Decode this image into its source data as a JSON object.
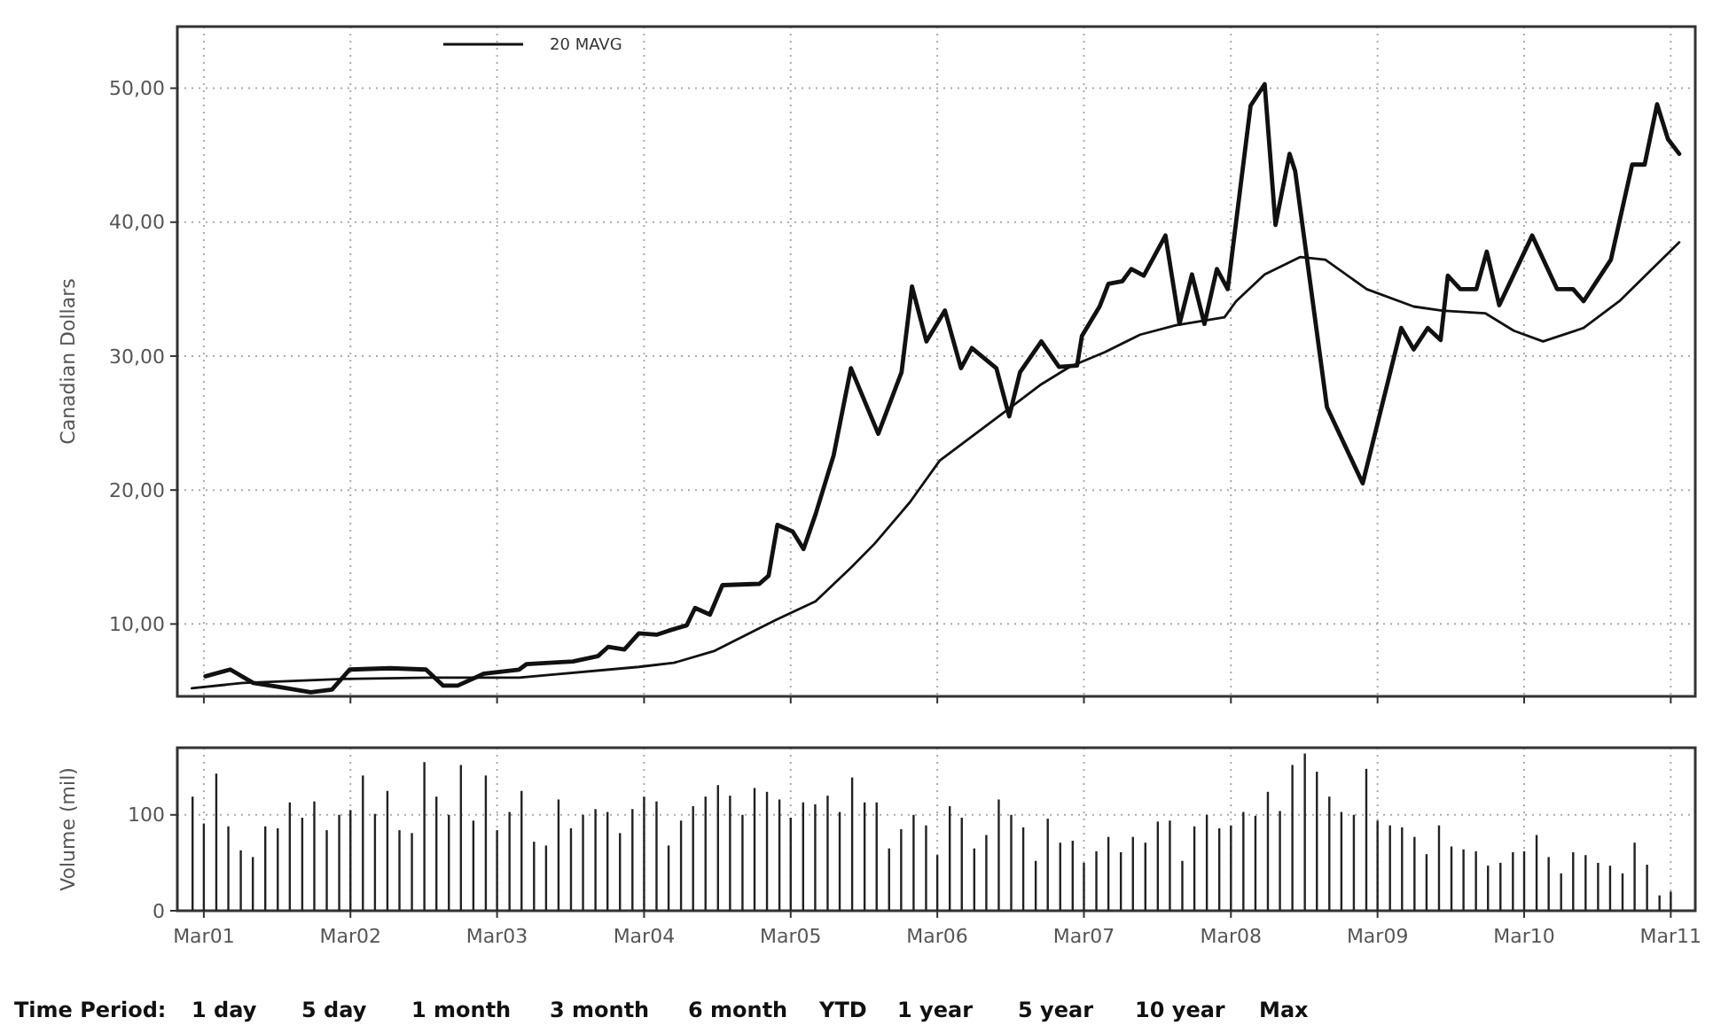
{
  "chart_data": [
    {
      "type": "line",
      "ylabel": "Canadian Dollars",
      "xlim": [
        "2000-12-25",
        "2011-05-01"
      ],
      "ylim": [
        4.6,
        54.6
      ],
      "xticks": [
        {
          "value": "2001-03-01",
          "label": null
        },
        {
          "value": "2002-03-01",
          "label": null
        },
        {
          "value": "2003-03-01",
          "label": null
        },
        {
          "value": "2004-03-01",
          "label": null
        },
        {
          "value": "2005-03-01",
          "label": null
        },
        {
          "value": "2006-03-01",
          "label": null
        },
        {
          "value": "2007-03-01",
          "label": null
        },
        {
          "value": "2008-03-01",
          "label": null
        },
        {
          "value": "2009-03-01",
          "label": null
        },
        {
          "value": "2010-03-01",
          "label": null
        },
        {
          "value": "2011-03-01",
          "label": null
        }
      ],
      "yticks": [
        {
          "value": 10,
          "label": "10,00"
        },
        {
          "value": 20,
          "label": "20,00"
        },
        {
          "value": 30,
          "label": "30,00"
        },
        {
          "value": 40,
          "label": "40,00"
        },
        {
          "value": 50,
          "label": "50,00"
        }
      ],
      "grid": true,
      "legend": "top left",
      "tick_labels": "y",
      "series": [
        {
          "color": "#111111",
          "x": [
            "2001-03-05",
            "2001-05-06",
            "2001-07-02",
            "2001-09-04",
            "2001-11-22",
            "2002-01-14",
            "2002-02-27",
            "2002-06-08",
            "2002-09-05",
            "2002-10-18",
            "2002-11-23",
            "2003-01-28",
            "2003-04-25",
            "2003-05-13",
            "2003-09-06",
            "2003-11-07",
            "2003-12-03",
            "2004-01-12",
            "2004-02-17",
            "2004-04-01",
            "2004-05-01",
            "2004-06-15",
            "2004-07-06",
            "2004-08-12",
            "2004-09-12",
            "2004-12-13",
            "2005-01-05",
            "2005-01-27",
            "2005-03-06",
            "2005-04-02",
            "2005-05-02",
            "2005-06-16",
            "2005-07-29",
            "2005-10-05",
            "2005-12-02",
            "2005-12-28",
            "2006-02-02",
            "2006-03-20",
            "2006-04-29",
            "2006-05-26",
            "2006-07-26",
            "2006-08-27",
            "2006-09-23",
            "2006-11-15",
            "2006-12-29",
            "2007-02-12",
            "2007-02-24",
            "2007-04-09",
            "2007-05-01",
            "2007-06-05",
            "2007-06-27",
            "2007-07-28",
            "2007-09-20",
            "2007-10-25",
            "2007-11-25",
            "2007-12-26",
            "2008-01-26",
            "2008-02-22",
            "2008-04-19",
            "2008-05-24",
            "2008-06-20",
            "2008-07-25",
            "2008-08-08",
            "2008-10-26",
            "2009-01-23",
            "2009-04-29",
            "2009-05-30",
            "2009-07-04",
            "2009-08-05",
            "2009-08-23",
            "2009-09-23",
            "2009-11-02",
            "2009-11-28",
            "2009-12-29",
            "2010-03-21",
            "2010-05-22",
            "2010-07-01",
            "2010-07-27",
            "2010-10-03",
            "2010-11-25",
            "2010-12-26",
            "2011-01-26",
            "2011-02-22",
            "2011-03-22"
          ],
          "values": [
            6.1,
            6.6,
            5.6,
            5.3,
            4.9,
            5.1,
            6.6,
            6.7,
            6.6,
            5.4,
            5.4,
            6.3,
            6.6,
            7.0,
            7.2,
            7.6,
            8.3,
            8.1,
            9.3,
            9.2,
            9.5,
            9.9,
            11.2,
            10.7,
            12.9,
            13.0,
            13.6,
            17.4,
            16.9,
            15.6,
            18.2,
            22.6,
            29.1,
            24.2,
            28.8,
            35.2,
            31.1,
            33.4,
            29.1,
            30.6,
            29.1,
            25.5,
            28.8,
            31.1,
            29.2,
            29.3,
            31.5,
            33.7,
            35.4,
            35.6,
            36.5,
            36.0,
            39.0,
            32.4,
            36.1,
            32.4,
            36.5,
            35.0,
            48.7,
            50.3,
            39.8,
            45.1,
            43.8,
            26.2,
            20.5,
            32.1,
            30.5,
            32.1,
            31.2,
            36.0,
            35.0,
            35.0,
            37.8,
            33.8,
            39.0,
            35.0,
            35.0,
            34.1,
            37.2,
            44.3,
            44.3,
            48.8,
            46.2,
            45.1
          ]
        },
        {
          "name": "20 MAVG",
          "color": "#111111",
          "x": [
            "2001-01-30",
            "2001-06-06",
            "2002-02-10",
            "2002-09-18",
            "2003-04-25",
            "2004-02-17",
            "2004-05-14",
            "2004-08-24",
            "2005-01-23",
            "2005-05-02",
            "2005-07-29",
            "2005-09-26",
            "2005-12-23",
            "2006-03-07",
            "2006-06-04",
            "2006-09-01",
            "2006-11-15",
            "2007-01-25",
            "2007-04-22",
            "2007-07-19",
            "2007-10-16",
            "2008-02-14",
            "2008-03-14",
            "2008-05-24",
            "2008-08-21",
            "2008-10-22",
            "2009-02-02",
            "2009-05-30",
            "2009-08-09",
            "2009-11-24",
            "2010-02-03",
            "2010-04-17",
            "2010-07-27",
            "2010-10-24",
            "2011-03-22"
          ],
          "values": [
            5.2,
            5.6,
            5.9,
            6.0,
            6.0,
            6.8,
            7.1,
            8.0,
            10.3,
            11.7,
            14.2,
            16.0,
            19.1,
            22.2,
            24.2,
            26.2,
            27.9,
            29.2,
            30.3,
            31.6,
            32.3,
            32.9,
            34.1,
            36.1,
            37.4,
            37.2,
            35.0,
            33.7,
            33.4,
            33.2,
            31.9,
            31.1,
            32.1,
            34.1,
            38.5
          ]
        }
      ]
    },
    {
      "type": "bar",
      "ylabel": "Volume (mil)",
      "xlim": [
        "2000-12-25",
        "2011-05-01"
      ],
      "ylim": [
        0,
        170
      ],
      "xticks": [
        {
          "value": "2001-03-01",
          "label": "Mar01"
        },
        {
          "value": "2002-03-01",
          "label": "Mar02"
        },
        {
          "value": "2003-03-01",
          "label": "Mar03"
        },
        {
          "value": "2004-03-01",
          "label": "Mar04"
        },
        {
          "value": "2005-03-01",
          "label": "Mar05"
        },
        {
          "value": "2006-03-01",
          "label": "Mar06"
        },
        {
          "value": "2007-03-01",
          "label": "Mar07"
        },
        {
          "value": "2008-03-01",
          "label": "Mar08"
        },
        {
          "value": "2009-03-01",
          "label": "Mar09"
        },
        {
          "value": "2010-03-01",
          "label": "Mar10"
        },
        {
          "value": "2011-03-01",
          "label": "Mar11"
        }
      ],
      "yticks": [
        0,
        100
      ],
      "grid": true,
      "color": "#222222",
      "x": [
        "2001-02",
        "2001-03",
        "2001-04",
        "2001-05",
        "2001-06",
        "2001-07",
        "2001-08",
        "2001-09",
        "2001-10",
        "2001-11",
        "2001-12",
        "2002-01",
        "2002-02",
        "2002-03",
        "2002-04",
        "2002-05",
        "2002-06",
        "2002-07",
        "2002-08",
        "2002-09",
        "2002-10",
        "2002-11",
        "2002-12",
        "2003-01",
        "2003-02",
        "2003-03",
        "2003-04",
        "2003-05",
        "2003-06",
        "2003-07",
        "2003-08",
        "2003-09",
        "2003-10",
        "2003-11",
        "2003-12",
        "2004-01",
        "2004-02",
        "2004-03",
        "2004-04",
        "2004-05",
        "2004-06",
        "2004-07",
        "2004-08",
        "2004-09",
        "2004-10",
        "2004-11",
        "2004-12",
        "2005-01",
        "2005-02",
        "2005-03",
        "2005-04",
        "2005-05",
        "2005-06",
        "2005-07",
        "2005-08",
        "2005-09",
        "2005-10",
        "2005-11",
        "2005-12",
        "2006-01",
        "2006-02",
        "2006-03",
        "2006-04",
        "2006-05",
        "2006-06",
        "2006-07",
        "2006-08",
        "2006-09",
        "2006-10",
        "2006-11",
        "2006-12",
        "2007-01",
        "2007-02",
        "2007-03",
        "2007-04",
        "2007-05",
        "2007-06",
        "2007-07",
        "2007-08",
        "2007-09",
        "2007-10",
        "2007-11",
        "2007-12",
        "2008-01",
        "2008-02",
        "2008-03",
        "2008-04",
        "2008-05",
        "2008-06",
        "2008-07",
        "2008-08",
        "2008-09",
        "2008-10",
        "2008-11",
        "2008-12",
        "2009-01",
        "2009-02",
        "2009-03",
        "2009-04",
        "2009-05",
        "2009-06",
        "2009-07",
        "2009-08",
        "2009-09",
        "2009-10",
        "2009-11",
        "2009-12",
        "2010-01",
        "2010-02",
        "2010-03",
        "2010-04",
        "2010-05",
        "2010-06",
        "2010-07",
        "2010-08",
        "2010-09",
        "2010-10",
        "2010-11",
        "2010-12",
        "2011-01",
        "2011-02",
        "2011-03"
      ],
      "values": [
        119,
        91,
        143,
        88,
        63,
        56,
        88,
        86,
        113,
        97,
        114,
        84,
        100,
        105,
        141,
        101,
        125,
        84,
        81,
        155,
        119,
        100,
        152,
        94,
        141,
        84,
        103,
        125,
        72,
        68,
        116,
        86,
        100,
        106,
        103,
        81,
        106,
        119,
        114,
        68,
        94,
        109,
        119,
        131,
        120,
        100,
        128,
        124,
        116,
        97,
        113,
        111,
        120,
        103,
        139,
        113,
        113,
        65,
        85,
        100,
        89,
        58,
        109,
        97,
        65,
        79,
        116,
        100,
        87,
        52,
        96,
        71,
        73,
        50,
        62,
        77,
        61,
        77,
        71,
        93,
        94,
        52,
        88,
        100,
        86,
        89,
        103,
        99,
        124,
        104,
        152,
        164,
        145,
        119,
        103,
        100,
        148,
        94,
        89,
        87,
        77,
        59,
        89,
        67,
        64,
        62,
        47,
        50,
        61,
        62,
        79,
        56,
        39,
        61,
        58,
        50,
        47,
        39,
        71,
        48,
        16,
        20
      ],
      "annotations": [
        "Time Period:",
        "1 day",
        "5 day",
        "1 month",
        "3 month",
        "6 month",
        "YTD",
        "1 year",
        "5 year",
        "10 year",
        "Max"
      ]
    }
  ]
}
